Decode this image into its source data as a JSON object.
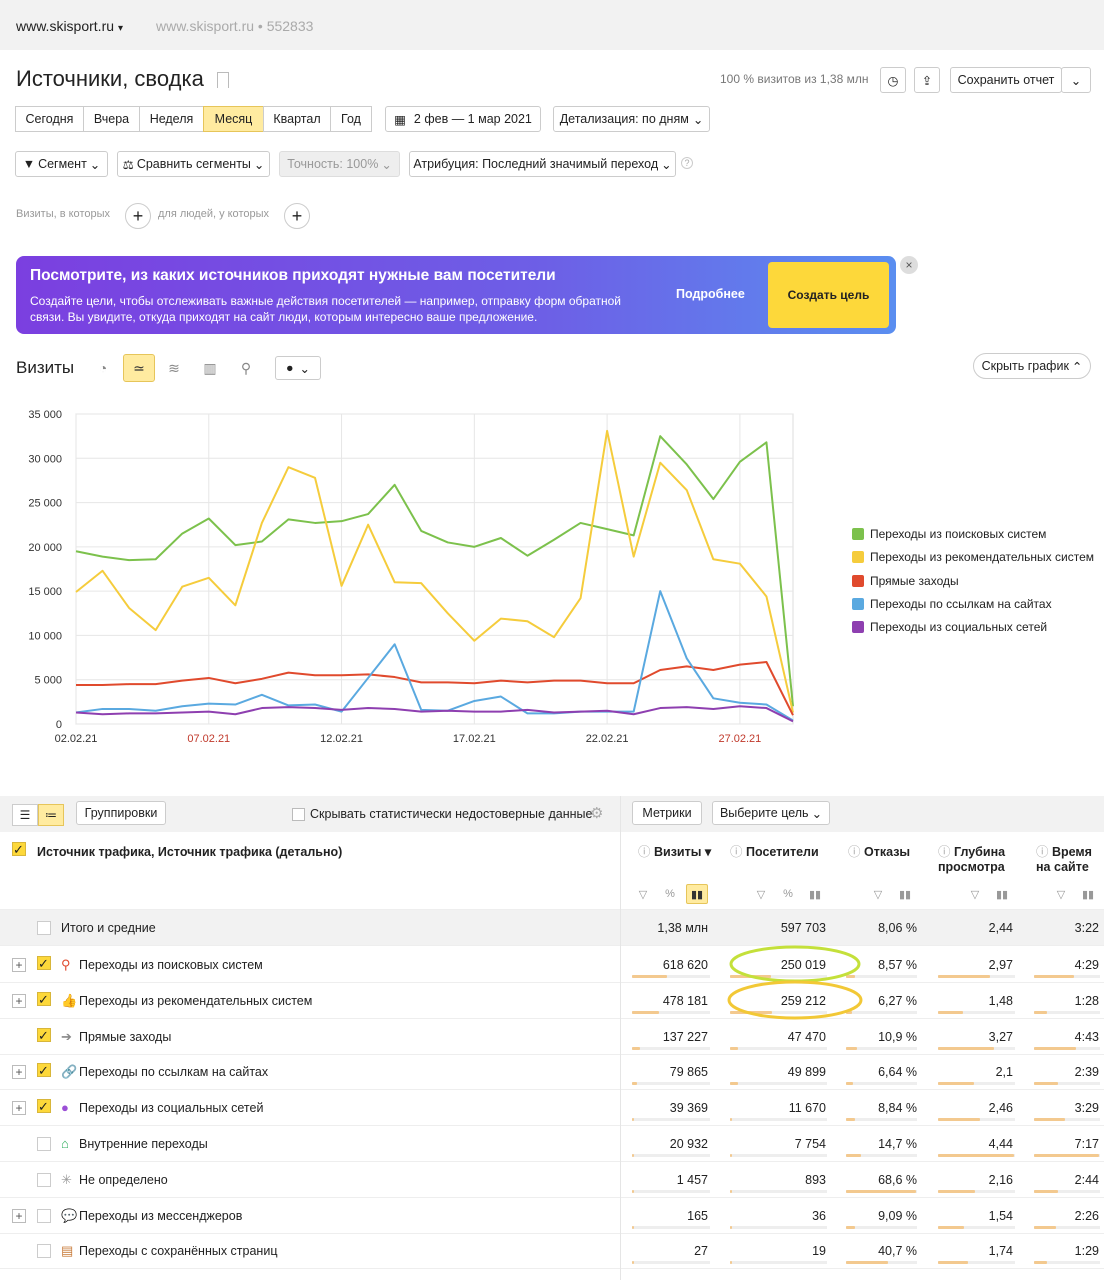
{
  "topbar": {
    "site": "www.skisport.ru",
    "site_info": "www.skisport.ru • 552833"
  },
  "header": {
    "title": "Источники, сводка",
    "visit_share": "100 % визитов из 1,38 млн",
    "save_report": "Сохранить отчет"
  },
  "periods": [
    "Сегодня",
    "Вчера",
    "Неделя",
    "Месяц",
    "Квартал",
    "Год"
  ],
  "active_period": "Месяц",
  "date_range": "2 фев — 1 мар 2021",
  "detail": "Детализация: по дням",
  "filters": {
    "segment": "Сегмент",
    "compare": "Сравнить сегменты",
    "accuracy": "Точность: 100%",
    "attribution": "Атрибуция: Последний значимый переход"
  },
  "filterline": {
    "visits": "Визиты, в которых",
    "people": "для людей, у которых"
  },
  "banner": {
    "title": "Посмотрите, из каких источников приходят нужные вам посетители",
    "text": "Создайте цели, чтобы отслеживать важные действия посетителей — например, отправку форм обратной связи. Вы увидите, откуда приходят на сайт люди, которым интересно ваше предложение.",
    "more": "Подробнее",
    "cta": "Создать цель"
  },
  "chart_section": {
    "label": "Визиты",
    "hide": "Скрыть график"
  },
  "chart_data": {
    "type": "line",
    "x": [
      "02.02.21",
      "03.02.21",
      "04.02.21",
      "05.02.21",
      "06.02.21",
      "07.02.21",
      "08.02.21",
      "09.02.21",
      "10.02.21",
      "11.02.21",
      "12.02.21",
      "13.02.21",
      "14.02.21",
      "15.02.21",
      "16.02.21",
      "17.02.21",
      "18.02.21",
      "19.02.21",
      "20.02.21",
      "21.02.21",
      "22.02.21",
      "23.02.21",
      "24.02.21",
      "25.02.21",
      "26.02.21",
      "27.02.21",
      "28.02.21",
      "01.03.21"
    ],
    "xticks": [
      "02.02.21",
      "07.02.21",
      "12.02.21",
      "17.02.21",
      "22.02.21",
      "27.02.21"
    ],
    "xticks_red": [
      "07.02.21",
      "27.02.21"
    ],
    "ylim": [
      0,
      35000
    ],
    "yticks": [
      "0",
      "5 000",
      "10 000",
      "15 000",
      "20 000",
      "25 000",
      "30 000",
      "35 000"
    ],
    "series": [
      {
        "name": "Переходы из поисковых систем",
        "color": "#7cc14c",
        "values": [
          19500,
          18900,
          18500,
          18600,
          21500,
          23200,
          20200,
          20600,
          23100,
          22700,
          22900,
          23700,
          27000,
          21800,
          20500,
          20000,
          21000,
          19000,
          20800,
          22700,
          22000,
          21300,
          32500,
          29300,
          25400,
          29600,
          31800,
          2000
        ]
      },
      {
        "name": "Переходы из рекомендательных систем",
        "color": "#f5cc3c",
        "values": [
          14900,
          17300,
          13100,
          10600,
          15500,
          16500,
          13400,
          22700,
          29000,
          27800,
          15600,
          22500,
          16000,
          15900,
          12500,
          9400,
          11900,
          11600,
          9800,
          14200,
          33100,
          18900,
          29500,
          26400,
          18600,
          18100,
          14400,
          1300
        ]
      },
      {
        "name": "Прямые заходы",
        "color": "#e04a2d",
        "values": [
          4400,
          4400,
          4500,
          4500,
          4900,
          5200,
          4600,
          5100,
          5800,
          5500,
          5500,
          5600,
          5300,
          4700,
          4700,
          4600,
          4900,
          4700,
          4900,
          4900,
          4600,
          4600,
          6100,
          6500,
          6100,
          6700,
          7000,
          1000
        ]
      },
      {
        "name": "Переходы по ссылкам на сайтах",
        "color": "#5aa9e0",
        "values": [
          1300,
          1700,
          1700,
          1500,
          2000,
          2300,
          2200,
          3300,
          2100,
          2200,
          1400,
          5200,
          9000,
          1600,
          1500,
          2600,
          3100,
          1200,
          1200,
          1400,
          1400,
          1400,
          15000,
          7400,
          2900,
          2400,
          2200,
          400
        ]
      },
      {
        "name": "Переходы из социальных сетей",
        "color": "#8e3fb0",
        "values": [
          1300,
          1100,
          1200,
          1200,
          1300,
          1400,
          1100,
          1800,
          1900,
          1800,
          1600,
          1800,
          1700,
          1400,
          1500,
          1400,
          1400,
          1600,
          1300,
          1400,
          1500,
          1100,
          1800,
          1900,
          1700,
          2000,
          1800,
          300
        ]
      }
    ]
  },
  "table": {
    "group_btn": "Группировки",
    "hide_unreliable": "Скрывать статистически недостоверные данные",
    "metrics_btn": "Метрики",
    "goal_btn": "Выберите цель",
    "dimension_header": "Источник трафика, Источник трафика (детально)",
    "columns": [
      "Визиты",
      "Посетители",
      "Отказы",
      "Глубина просмотра",
      "Время на сайте"
    ],
    "total": {
      "label": "Итого и средние",
      "values": [
        "1,38 млн",
        "597 703",
        "8,06 %",
        "2,44",
        "3:22"
      ]
    },
    "rows": [
      {
        "label": "Переходы из поисковых систем",
        "icon": "search-icon",
        "expand": true,
        "checked": true,
        "values": [
          "618 620",
          "250 019",
          "8,57 %",
          "2,97",
          "4:29"
        ],
        "bars": [
          0.45,
          0.42,
          0.12,
          0.67,
          0.6
        ]
      },
      {
        "label": "Переходы из рекомендательных систем",
        "icon": "thumb-icon",
        "expand": true,
        "checked": true,
        "values": [
          "478 181",
          "259 212",
          "6,27 %",
          "1,48",
          "1:28"
        ],
        "bars": [
          0.35,
          0.43,
          0.09,
          0.33,
          0.2
        ]
      },
      {
        "label": "Прямые заходы",
        "icon": "arrow-icon",
        "expand": false,
        "checked": true,
        "values": [
          "137 227",
          "47 470",
          "10,9 %",
          "3,27",
          "4:43"
        ],
        "bars": [
          0.1,
          0.08,
          0.16,
          0.73,
          0.63
        ]
      },
      {
        "label": "Переходы по ссылкам на сайтах",
        "icon": "link-icon",
        "expand": true,
        "checked": true,
        "values": [
          "79 865",
          "49 899",
          "6,64 %",
          "2,1",
          "2:39"
        ],
        "bars": [
          0.06,
          0.08,
          0.1,
          0.47,
          0.36
        ]
      },
      {
        "label": "Переходы из социальных сетей",
        "icon": "person-icon",
        "expand": true,
        "checked": true,
        "values": [
          "39 369",
          "11 670",
          "8,84 %",
          "2,46",
          "3:29"
        ],
        "bars": [
          0.03,
          0.02,
          0.13,
          0.55,
          0.47
        ]
      },
      {
        "label": "Внутренние переходы",
        "icon": "home-icon",
        "expand": false,
        "checked": false,
        "values": [
          "20 932",
          "7 754",
          "14,7 %",
          "4,44",
          "7:17"
        ],
        "bars": [
          0.015,
          0.013,
          0.21,
          0.99,
          0.98
        ]
      },
      {
        "label": "Не определено",
        "icon": "spinner-icon",
        "expand": false,
        "checked": false,
        "values": [
          "1 457",
          "893",
          "68,6 %",
          "2,16",
          "2:44"
        ],
        "bars": [
          0.005,
          0.005,
          0.99,
          0.48,
          0.37
        ]
      },
      {
        "label": "Переходы из мессенджеров",
        "icon": "chat-icon",
        "expand": true,
        "checked": false,
        "values": [
          "165",
          "36",
          "9,09 %",
          "1,54",
          "2:26"
        ],
        "bars": [
          0.002,
          0.002,
          0.13,
          0.34,
          0.33
        ]
      },
      {
        "label": "Переходы с сохранённых страниц",
        "icon": "page-icon",
        "expand": false,
        "checked": false,
        "values": [
          "27",
          "19",
          "40,7 %",
          "1,74",
          "1:29"
        ],
        "bars": [
          0.002,
          0.002,
          0.59,
          0.39,
          0.2
        ]
      }
    ]
  }
}
